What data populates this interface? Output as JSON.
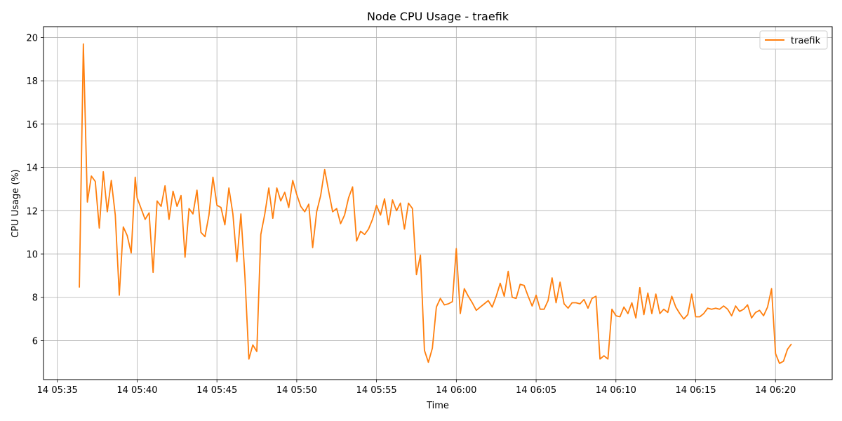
{
  "chart_data": {
    "type": "line",
    "title": "Node CPU Usage - traefik",
    "xlabel": "Time",
    "ylabel": "CPU Usage (%)",
    "x_tick_labels": [
      "14 05:35",
      "14 05:40",
      "14 05:45",
      "14 05:50",
      "14 05:55",
      "14 06:00",
      "14 06:05",
      "14 06:10",
      "14 06:15",
      "14 06:20"
    ],
    "x_tick_minutes": [
      35,
      40,
      45,
      50,
      55,
      60,
      65,
      70,
      75,
      80
    ],
    "y_ticks": [
      6,
      8,
      10,
      12,
      14,
      16,
      18,
      20
    ],
    "xlim": [
      "05:34:08",
      "06:23:33"
    ],
    "ylim": [
      4.2,
      20.5
    ],
    "grid": true,
    "legend_position": "top-right",
    "series": [
      {
        "name": "traefik",
        "color": "#ff7f0e",
        "x_minutes": [
          36.38,
          36.63,
          36.88,
          37.13,
          37.38,
          37.63,
          37.88,
          38.13,
          38.38,
          38.63,
          38.88,
          39.13,
          39.38,
          39.63,
          39.88,
          40.0,
          40.25,
          40.5,
          40.75,
          41.0,
          41.25,
          41.5,
          41.75,
          42.0,
          42.25,
          42.5,
          42.75,
          43.0,
          43.25,
          43.5,
          43.75,
          44.0,
          44.25,
          44.5,
          44.75,
          45.0,
          45.25,
          45.5,
          45.75,
          46.0,
          46.25,
          46.5,
          46.75,
          47.0,
          47.25,
          47.5,
          47.75,
          48.0,
          48.25,
          48.5,
          48.75,
          49.0,
          49.25,
          49.5,
          49.75,
          50.0,
          50.25,
          50.5,
          50.75,
          51.0,
          51.25,
          51.5,
          51.75,
          52.0,
          52.25,
          52.5,
          52.75,
          53.0,
          53.25,
          53.5,
          53.75,
          54.0,
          54.25,
          54.5,
          54.75,
          55.0,
          55.25,
          55.5,
          55.75,
          56.0,
          56.25,
          56.5,
          56.75,
          57.0,
          57.25,
          57.5,
          57.75,
          58.0,
          58.25,
          58.5,
          58.75,
          59.0,
          59.25,
          59.5,
          59.75,
          60.0,
          60.25,
          60.5,
          60.75,
          61.0,
          61.25,
          61.5,
          61.75,
          62.0,
          62.25,
          62.5,
          62.75,
          63.0,
          63.25,
          63.5,
          63.75,
          64.0,
          64.25,
          64.5,
          64.75,
          65.0,
          65.25,
          65.5,
          65.75,
          66.0,
          66.25,
          66.5,
          66.75,
          67.0,
          67.25,
          67.5,
          67.75,
          68.0,
          68.25,
          68.5,
          68.75,
          69.0,
          69.25,
          69.5,
          69.75,
          70.0,
          70.25,
          70.5,
          70.75,
          71.0,
          71.25,
          71.5,
          71.75,
          72.0,
          72.25,
          72.5,
          72.75,
          73.0,
          73.25,
          73.5,
          73.75,
          74.0,
          74.25,
          74.5,
          74.75,
          75.0,
          75.25,
          75.5,
          75.75,
          76.0,
          76.25,
          76.5,
          76.75,
          77.0,
          77.25,
          77.5,
          77.75,
          78.0,
          78.25,
          78.5,
          78.75,
          79.0,
          79.25,
          79.5,
          79.75,
          80.0,
          80.25,
          80.5,
          80.75,
          81.0
        ],
        "values": [
          8.45,
          19.7,
          12.4,
          13.6,
          13.35,
          11.2,
          13.8,
          11.95,
          13.4,
          11.8,
          8.1,
          11.25,
          10.85,
          10.05,
          13.55,
          12.6,
          12.1,
          11.6,
          11.9,
          9.15,
          12.45,
          12.2,
          13.15,
          11.6,
          12.9,
          12.2,
          12.7,
          9.85,
          12.1,
          11.85,
          12.95,
          11.0,
          10.8,
          11.8,
          13.55,
          12.25,
          12.15,
          11.35,
          13.05,
          11.85,
          9.65,
          11.85,
          9.0,
          5.15,
          5.8,
          5.5,
          10.9,
          11.85,
          13.05,
          11.65,
          13.05,
          12.45,
          12.85,
          12.15,
          13.4,
          12.75,
          12.2,
          11.95,
          12.3,
          10.3,
          11.95,
          12.7,
          13.9,
          12.9,
          11.95,
          12.1,
          11.4,
          11.8,
          12.6,
          13.1,
          10.6,
          11.05,
          10.9,
          11.15,
          11.6,
          12.25,
          11.8,
          12.55,
          11.35,
          12.5,
          12.0,
          12.35,
          11.15,
          12.35,
          12.1,
          9.05,
          9.95,
          5.55,
          5.0,
          5.65,
          7.55,
          7.95,
          7.65,
          7.7,
          7.8,
          10.25,
          7.25,
          8.4,
          8.05,
          7.75,
          7.4,
          7.55,
          7.7,
          7.85,
          7.55,
          8.05,
          8.65,
          8.05,
          9.2,
          8.0,
          7.95,
          8.6,
          8.55,
          8.05,
          7.6,
          8.1,
          7.45,
          7.45,
          7.85,
          8.9,
          7.75,
          8.7,
          7.7,
          7.5,
          7.75,
          7.75,
          7.7,
          7.9,
          7.5,
          7.95,
          8.05,
          5.15,
          5.3,
          5.15,
          7.45,
          7.15,
          7.1,
          7.55,
          7.25,
          7.75,
          7.05,
          8.45,
          7.2,
          8.2,
          7.25,
          8.15,
          7.25,
          7.45,
          7.3,
          8.05,
          7.55,
          7.25,
          7.0,
          7.2,
          8.15,
          7.1,
          7.1,
          7.25,
          7.5,
          7.45,
          7.5,
          7.45,
          7.6,
          7.45,
          7.15,
          7.6,
          7.35,
          7.45,
          7.65,
          7.05,
          7.3,
          7.4,
          7.15,
          7.55,
          8.4,
          5.4,
          4.95,
          5.05,
          5.6,
          5.85
        ]
      }
    ]
  }
}
